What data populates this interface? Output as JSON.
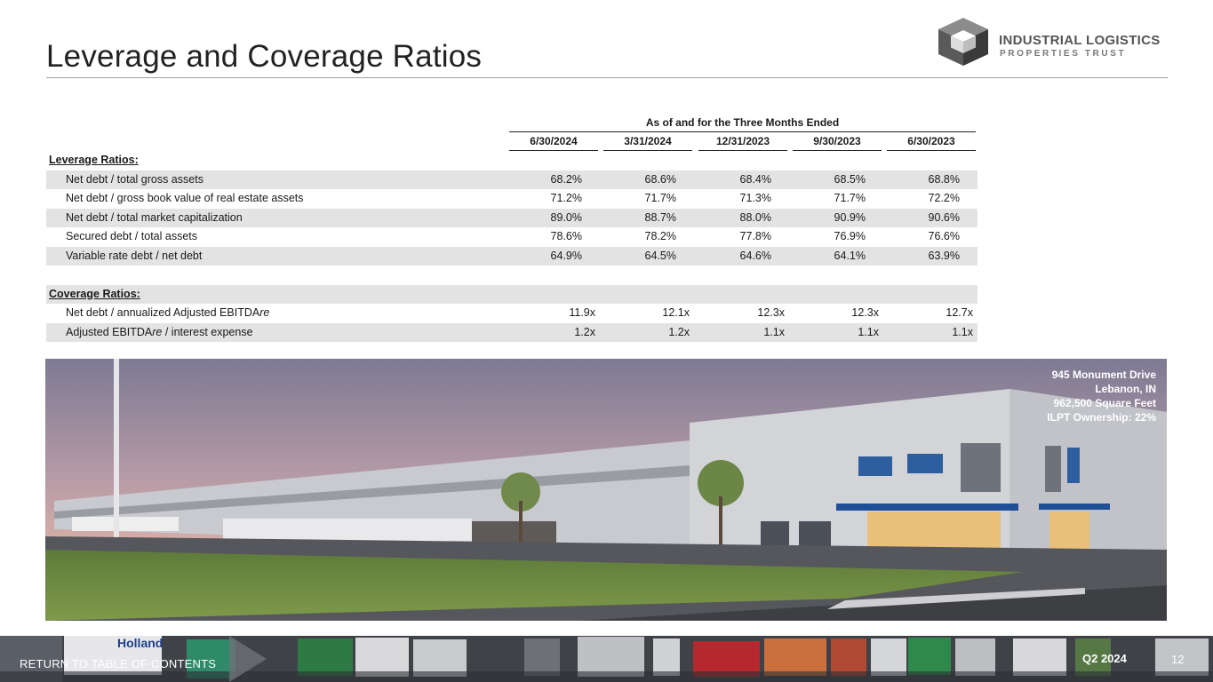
{
  "page": {
    "title": "Leverage and Coverage Ratios"
  },
  "logo": {
    "line1": "INDUSTRIAL LOGISTICS",
    "line2": "PROPERTIES TRUST"
  },
  "table": {
    "period_header": "As of and for the Three Months Ended",
    "columns": [
      "6/30/2024",
      "3/31/2024",
      "12/31/2023",
      "9/30/2023",
      "6/30/2023"
    ],
    "leverage_title": "Leverage Ratios:",
    "leverage_rows": [
      {
        "label": "Net debt / total gross assets",
        "values": [
          "68.2%",
          "68.6%",
          "68.4%",
          "68.5%",
          "68.8%"
        ]
      },
      {
        "label": "Net debt / gross book value of real estate assets",
        "values": [
          "71.2%",
          "71.7%",
          "71.3%",
          "71.7%",
          "72.2%"
        ]
      },
      {
        "label": "Net debt / total market capitalization",
        "values": [
          "89.0%",
          "88.7%",
          "88.0%",
          "90.9%",
          "90.6%"
        ]
      },
      {
        "label": "Secured debt / total assets",
        "values": [
          "78.6%",
          "78.2%",
          "77.8%",
          "76.9%",
          "76.6%"
        ]
      },
      {
        "label": "Variable rate debt / net debt",
        "values": [
          "64.9%",
          "64.5%",
          "64.6%",
          "64.1%",
          "63.9%"
        ]
      }
    ],
    "coverage_title": "Coverage Ratios:",
    "coverage_rows": [
      {
        "label_main": "Net debt / annualized Adjusted EBITDA",
        "label_italic": "re",
        "label_tail": "",
        "values": [
          "11.9x",
          "12.1x",
          "12.3x",
          "12.3x",
          "12.7x"
        ]
      },
      {
        "label_main": "Adjusted EBITDA",
        "label_italic": "re",
        "label_tail": " / interest expense",
        "values": [
          "1.2x",
          "1.2x",
          "1.1x",
          "1.1x",
          "1.1x"
        ]
      }
    ]
  },
  "photo": {
    "caption": [
      "945 Monument Drive",
      "Lebanon, IN",
      "962,500 Square Feet",
      "ILPT Ownership: 22%"
    ],
    "truck_lettering": "Holland"
  },
  "footer": {
    "link": "RETURN TO TABLE OF CONTENTS",
    "quarter": "Q2 2024",
    "page_number": "12"
  },
  "colors": {
    "row_shade": "#e3e3e3",
    "title_text": "#222222",
    "logo_text": "#555555"
  }
}
